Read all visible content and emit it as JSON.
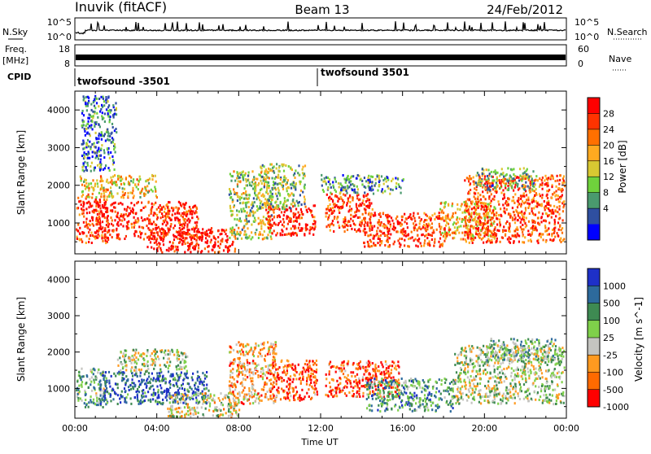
{
  "header": {
    "station": "Inuvik (fitACF)",
    "beam": "Beam 13",
    "date": "24/Feb/2012"
  },
  "top_panels": {
    "nsky_label": "N.Sky",
    "nsky_ticks": [
      "10^5",
      "10^0"
    ],
    "nsearch_label": "N.Search",
    "nsearch_ticks": [
      "10^5",
      "10^0"
    ],
    "freq_label_1": "Freq.",
    "freq_label_2": "[MHz]",
    "freq_ticks": [
      "18",
      "8"
    ],
    "nave_label": "Nave",
    "nave_ticks": [
      "60",
      "0"
    ],
    "cpid_label": "CPID",
    "cpid_segments": [
      {
        "label": "twofsound -3501",
        "start_hour": 0
      },
      {
        "label": "twofsound 3501",
        "start_hour": 12
      }
    ]
  },
  "chart_data": [
    {
      "type": "heatmap",
      "name": "power",
      "ylabel": "Slant Range [km]",
      "xlabel": "",
      "xlim": [
        0,
        24
      ],
      "ylim": [
        180,
        4500
      ],
      "x_ticks": [],
      "y_ticks": [
        1000,
        2000,
        3000,
        4000
      ],
      "colorbar": {
        "label": "Power [dB]",
        "ticks": [
          "28",
          "24",
          "20",
          "16",
          "12",
          "8",
          "4"
        ],
        "colors": [
          "#ff0000",
          "#ff3300",
          "#ff7000",
          "#ffaa20",
          "#d8c832",
          "#6fd23c",
          "#4a9a6e",
          "#2f4fa0",
          "#0000ff"
        ]
      },
      "bands": [
        {
          "t0": 0.0,
          "t1": 1.6,
          "r0": 500,
          "r1": 1700,
          "level": 0.85
        },
        {
          "t0": 1.0,
          "t1": 6.0,
          "r0": 600,
          "r1": 1600,
          "level": 0.9
        },
        {
          "t0": 3.5,
          "t1": 7.8,
          "r0": 200,
          "r1": 900,
          "level": 0.95
        },
        {
          "t0": 0.2,
          "t1": 4.0,
          "r0": 1700,
          "r1": 2300,
          "level": 0.55
        },
        {
          "t0": 7.5,
          "t1": 9.6,
          "r0": 600,
          "r1": 2400,
          "level": 0.45
        },
        {
          "t0": 9.3,
          "t1": 11.7,
          "r0": 700,
          "r1": 1500,
          "level": 0.9
        },
        {
          "t0": 9.0,
          "t1": 11.2,
          "r0": 1400,
          "r1": 2600,
          "level": 0.4
        },
        {
          "t0": 12.2,
          "t1": 14.5,
          "r0": 800,
          "r1": 1800,
          "level": 0.85
        },
        {
          "t0": 12.0,
          "t1": 16.0,
          "r0": 1800,
          "r1": 2300,
          "level": 0.3
        },
        {
          "t0": 14.0,
          "t1": 18.2,
          "r0": 400,
          "r1": 1300,
          "level": 0.85
        },
        {
          "t0": 17.8,
          "t1": 20.5,
          "r0": 600,
          "r1": 1600,
          "level": 0.6
        },
        {
          "t0": 19.0,
          "t1": 24.0,
          "r0": 500,
          "r1": 2300,
          "level": 0.8
        },
        {
          "t0": 19.5,
          "t1": 22.5,
          "r0": 1900,
          "r1": 2500,
          "level": 0.35
        },
        {
          "t0": 0.3,
          "t1": 2.0,
          "r0": 2400,
          "r1": 4400,
          "level": 0.25
        }
      ]
    },
    {
      "type": "heatmap",
      "name": "velocity",
      "ylabel": "Slant Range [km]",
      "xlabel": "Time UT",
      "xlim": [
        0,
        24
      ],
      "ylim": [
        180,
        4500
      ],
      "x_ticks": [
        "00:00",
        "04:00",
        "08:00",
        "12:00",
        "16:00",
        "20:00",
        "00:00"
      ],
      "y_ticks": [
        1000,
        2000,
        3000,
        4000
      ],
      "colorbar": {
        "label": "Velocity [m s^-1]",
        "ticks": [
          "1000",
          "500",
          "100",
          "25",
          "-25",
          "-100",
          "-500",
          "-1000"
        ],
        "colors": [
          "#1e30c8",
          "#2d6a9c",
          "#3e8a52",
          "#7fd04a",
          "#c4c4c0",
          "#ff9a20",
          "#ff6a00",
          "#ff0000"
        ]
      },
      "bands": [
        {
          "t0": 0.0,
          "t1": 1.5,
          "r0": 500,
          "r1": 1600,
          "level": 0.6
        },
        {
          "t0": 1.2,
          "t1": 6.5,
          "r0": 600,
          "r1": 1500,
          "level": 0.85
        },
        {
          "t0": 2.0,
          "t1": 5.5,
          "r0": 1500,
          "r1": 2100,
          "level": 0.5
        },
        {
          "t0": 4.5,
          "t1": 8.0,
          "r0": 200,
          "r1": 900,
          "level": 0.45
        },
        {
          "t0": 7.5,
          "t1": 9.8,
          "r0": 600,
          "r1": 2300,
          "level": 0.3
        },
        {
          "t0": 9.5,
          "t1": 11.8,
          "r0": 700,
          "r1": 1800,
          "level": 0.15
        },
        {
          "t0": 12.2,
          "t1": 15.8,
          "r0": 800,
          "r1": 1800,
          "level": 0.15
        },
        {
          "t0": 14.2,
          "t1": 18.5,
          "r0": 400,
          "r1": 1300,
          "level": 0.7
        },
        {
          "t0": 18.5,
          "t1": 24.0,
          "r0": 600,
          "r1": 2200,
          "level": 0.5
        },
        {
          "t0": 20.0,
          "t1": 23.5,
          "r0": 1800,
          "r1": 2400,
          "level": 0.6
        }
      ]
    }
  ]
}
